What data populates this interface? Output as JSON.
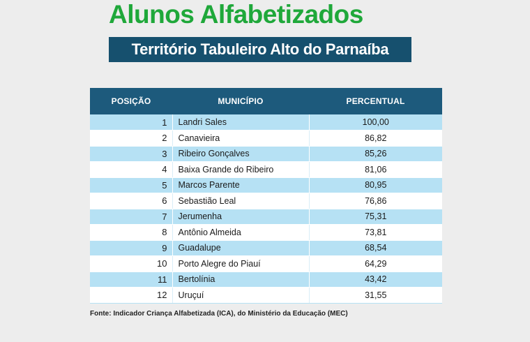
{
  "title": "Alunos Alfabetizados",
  "subtitle": "Território Tabuleiro Alto do Parnaíba",
  "table": {
    "headers": [
      "POSIÇÃO",
      "MUNICÍPIO",
      "PERCENTUAL"
    ],
    "rows": [
      {
        "pos": "1",
        "municipio": "Landri Sales",
        "pct": "100,00"
      },
      {
        "pos": "2",
        "municipio": "Canavieira",
        "pct": "86,82"
      },
      {
        "pos": "3",
        "municipio": "Ribeiro Gonçalves",
        "pct": "85,26"
      },
      {
        "pos": "4",
        "municipio": "Baixa Grande do Ribeiro",
        "pct": "81,06"
      },
      {
        "pos": "5",
        "municipio": "Marcos Parente",
        "pct": "80,95"
      },
      {
        "pos": "6",
        "municipio": "Sebastião Leal",
        "pct": "76,86"
      },
      {
        "pos": "7",
        "municipio": "Jerumenha",
        "pct": "75,31"
      },
      {
        "pos": "8",
        "municipio": "Antônio Almeida",
        "pct": "73,81"
      },
      {
        "pos": "9",
        "municipio": "Guadalupe",
        "pct": "68,54"
      },
      {
        "pos": "10",
        "municipio": "Porto Alegre do Piauí",
        "pct": "64,29"
      },
      {
        "pos": "11",
        "municipio": "Bertolínia",
        "pct": "43,42"
      },
      {
        "pos": "12",
        "municipio": "Uruçuí",
        "pct": "31,55"
      }
    ]
  },
  "source": "Fonte: Indicador Criança Alfabetizada (ICA), do Ministério da Educação (MEC)",
  "colors": {
    "title_green": "#1fa83a",
    "subtitle_bg": "#16506e",
    "header_bg": "#1d5a7c",
    "row_light_blue": "#b6e1f4"
  }
}
